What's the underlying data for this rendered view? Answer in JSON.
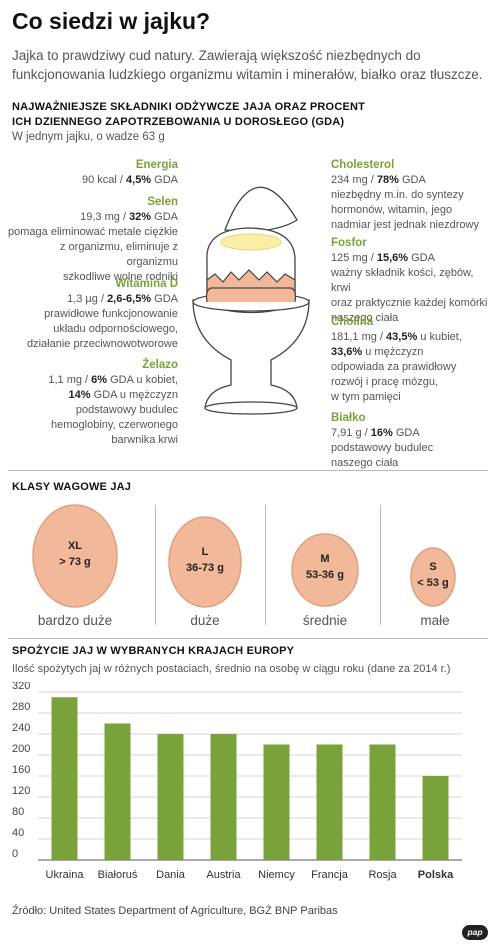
{
  "title": "Co siedzi w jajku?",
  "intro": "Jajka to prawdziwy cud natury. Zawierają większość niezbędnych do funkcjonowania ludzkiego organizmu witamin i minerałów, białko oraz tłuszcze.",
  "nutrients_section": {
    "heading_line1": "NAJWAŻNIEJSZE SKŁADNIKI ODŻYWCZE JAJA ORAZ PROCENT",
    "heading_line2": "ICH DZIENNEGO ZAPOTRZEBOWANIA U DOROSŁEGO (GDA)",
    "note": "W jednym jajku, o wadze 63 g",
    "left": [
      {
        "name": "Energia",
        "lines": [
          [
            "90 kcal / ",
            "4,5%",
            " GDA"
          ]
        ]
      },
      {
        "name": "Selen",
        "lines": [
          [
            "19,3 mg / ",
            "32%",
            " GDA"
          ],
          [
            "pomaga eliminować metale ciężkie"
          ],
          [
            "z organizmu, eliminuje z organizmu"
          ],
          [
            "szkodliwe wolne rodniki"
          ]
        ]
      },
      {
        "name": "Witamina D",
        "lines": [
          [
            "1,3 µg / ",
            "2,6-6,5%",
            " GDA"
          ],
          [
            "prawidłowe funkcjonowanie"
          ],
          [
            "układu odpornościowego,"
          ],
          [
            "działanie przeciwnowotworowe"
          ]
        ]
      },
      {
        "name": "Żelazo",
        "lines": [
          [
            "1,1 mg / ",
            "6%",
            " GDA u kobiet,"
          ],
          [
            "",
            "14%",
            " GDA u mężczyzn"
          ],
          [
            "podstawowy budulec"
          ],
          [
            "hemoglobiny, czerwonego"
          ],
          [
            "barwnika krwi"
          ]
        ]
      }
    ],
    "right": [
      {
        "name": "Cholesterol",
        "lines": [
          [
            "234 mg / ",
            "78%",
            " GDA"
          ],
          [
            "niezbędny m.in. do syntezy"
          ],
          [
            "hormonów, witamin, jego"
          ],
          [
            "nadmiar jest jednak niezdrowy"
          ]
        ]
      },
      {
        "name": "Fosfor",
        "lines": [
          [
            "125 mg / ",
            "15,6%",
            " GDA"
          ],
          [
            "ważny składnik kości, zębów, krwi"
          ],
          [
            "oraz praktycznie każdej komórki"
          ],
          [
            "naszego ciała"
          ]
        ]
      },
      {
        "name": "Cholina",
        "lines": [
          [
            "181,1 mg / ",
            "43,5%",
            " u kubiet,"
          ],
          [
            "",
            "33,6%",
            " u mężczyzn"
          ],
          [
            "odpowiada za prawidłowy"
          ],
          [
            "rozwój i pracę mózgu,"
          ],
          [
            "w tym pamięci"
          ]
        ]
      },
      {
        "name": "Białko",
        "lines": [
          [
            "7,91 g / ",
            "16%",
            " GDA"
          ],
          [
            "podstawowy budulec"
          ],
          [
            "naszego ciała"
          ]
        ]
      }
    ]
  },
  "weight_classes": {
    "heading": "KLASY WAGOWE JAJ",
    "items": [
      {
        "code": "XL",
        "range": "> 73 g",
        "caption": "bardzo duże"
      },
      {
        "code": "L",
        "range": "36-73 g",
        "caption": "duże"
      },
      {
        "code": "M",
        "range": "53-36 g",
        "caption": "średnie"
      },
      {
        "code": "S",
        "range": "< 53 g",
        "caption": "małe"
      }
    ]
  },
  "consumption": {
    "heading": "SPOŻYCIE JAJ W WYBRANYCH KRAJACH EUROPY",
    "subtitle": "Ilość spożytych jaj w różnych postaciach, średnio na osobę w ciągu roku (dane za 2014 r.)"
  },
  "colors": {
    "bar": "#7aa23a",
    "egg": "#f2b89a",
    "egg_stroke": "#e0a080",
    "accent_green": "#7aa23a"
  },
  "chart_data": {
    "type": "bar",
    "categories": [
      "Ukraina",
      "Białoruś",
      "Dania",
      "Austria",
      "Niemcy",
      "Francja",
      "Rosja",
      "Polska"
    ],
    "highlight": "Polska",
    "values": [
      310,
      260,
      240,
      240,
      220,
      220,
      220,
      160
    ],
    "yticks": [
      0,
      40,
      80,
      120,
      160,
      200,
      240,
      280,
      320
    ],
    "ylim": [
      0,
      320
    ],
    "grid": true
  },
  "source": "Źródło: United States Department of Agriculture, BGŻ BNP Paribas",
  "logo": "pap"
}
